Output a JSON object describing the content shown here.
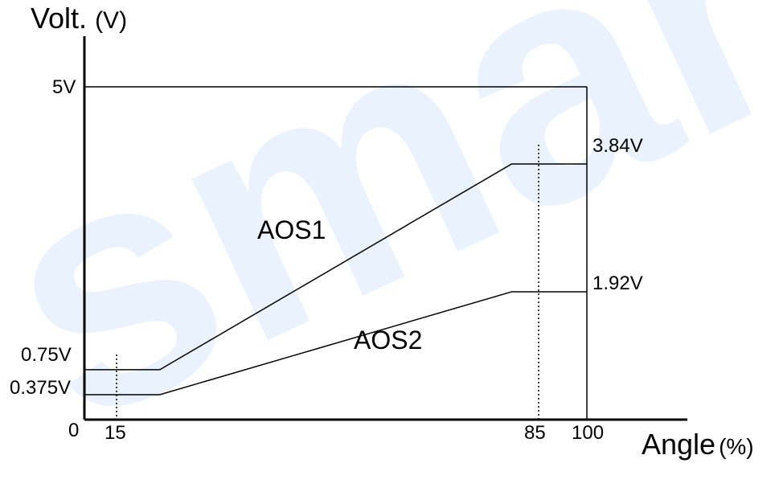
{
  "chart_data": {
    "type": "line",
    "xlabel": "Angle",
    "xlabel_unit": "(%)",
    "ylabel": "Volt.",
    "ylabel_unit": "(V)",
    "series": [
      {
        "name": "AOS1",
        "points": [
          [
            0,
            0.75
          ],
          [
            15,
            0.75
          ],
          [
            85,
            3.84
          ],
          [
            100,
            3.84
          ]
        ]
      },
      {
        "name": "AOS2",
        "points": [
          [
            0,
            0.375
          ],
          [
            15,
            0.375
          ],
          [
            85,
            1.92
          ],
          [
            100,
            1.92
          ]
        ]
      }
    ],
    "x_ticks": [
      "0",
      "15",
      "85",
      "100"
    ],
    "y_ticks_left": [
      "5V",
      "0.75V",
      "0.375V"
    ],
    "y_ticks_right": [
      "3.84V",
      "1.92V"
    ],
    "watermark": "smart"
  }
}
